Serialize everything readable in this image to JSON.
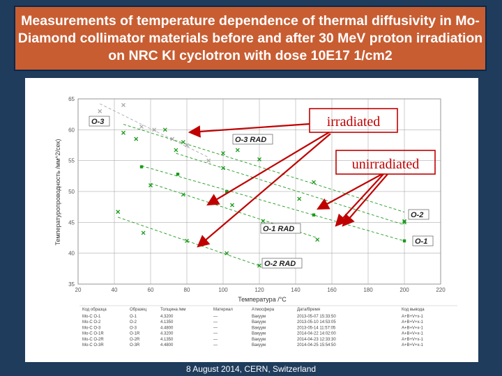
{
  "header": {
    "title": "Measurements of temperature dependence of thermal diffusivity in Mo-Diamond collimator materials before and after 30 MeV proton irradiation on NRC KI cyclotron with dose 10E17 1/cm2"
  },
  "footer": {
    "text": "8 August 2014, CERN, Switzerland"
  },
  "annotations": {
    "irradiated": "irradiated",
    "unirradiated": "unirradiated"
  },
  "colors": {
    "background": "#1f3c5c",
    "title_bg": "#c85d32",
    "annotation": "#c00000",
    "series": "#1a9a1a"
  },
  "chart_data": {
    "type": "scatter",
    "xlabel": "Температура /°C",
    "ylabel": "Температуропроводность /мм^2/сек)",
    "xlim": [
      20,
      220
    ],
    "ylim": [
      35,
      65
    ],
    "x_ticks": [
      "20",
      "40",
      "60",
      "80",
      "100",
      "120",
      "140",
      "160",
      "180",
      "200",
      "220"
    ],
    "y_ticks": [
      "35",
      "40",
      "45",
      "50",
      "55",
      "60",
      "65"
    ],
    "grid": true,
    "series": [
      {
        "name": "O-3",
        "marker": "x",
        "color": "#aaaaaa",
        "points": [
          [
            32,
            63
          ],
          [
            45,
            64
          ],
          [
            55,
            60.5
          ],
          [
            62,
            60
          ],
          [
            72,
            58.5
          ],
          [
            80,
            57.5
          ],
          [
            92,
            55
          ]
        ]
      },
      {
        "name": "O-3 RAD",
        "marker": "x",
        "color": "#1a9a1a",
        "points": [
          [
            45,
            59.5
          ],
          [
            52,
            58.5
          ],
          [
            68,
            60
          ],
          [
            78,
            58
          ],
          [
            100,
            56.2
          ],
          [
            108,
            56.7
          ],
          [
            120,
            55.2
          ],
          [
            150,
            51.5
          ],
          [
            200,
            45
          ]
        ]
      },
      {
        "name": "O-2",
        "marker": "x",
        "color": "#1a9a1a",
        "points": [
          [
            74,
            56.7
          ],
          [
            100,
            53.8
          ],
          [
            142,
            48.8
          ],
          [
            200,
            45.2
          ]
        ]
      },
      {
        "name": "O-1",
        "marker": "square",
        "color": "#1a9a1a",
        "points": [
          [
            55,
            54
          ],
          [
            75,
            52.8
          ],
          [
            102,
            50
          ],
          [
            150,
            46.2
          ],
          [
            200,
            42
          ]
        ]
      },
      {
        "name": "O-1 RAD",
        "marker": "x",
        "color": "#1a9a1a",
        "points": [
          [
            60,
            51
          ],
          [
            78,
            49.5
          ],
          [
            105,
            47.8
          ],
          [
            122,
            45.2
          ],
          [
            152,
            42.2
          ]
        ]
      },
      {
        "name": "O-2 RAD",
        "marker": "x",
        "color": "#1a9a1a",
        "points": [
          [
            42,
            46.7
          ],
          [
            56,
            43.3
          ],
          [
            80,
            42
          ],
          [
            102,
            40
          ],
          [
            120,
            38
          ]
        ]
      }
    ]
  },
  "table": {
    "headers": [
      "Код образца",
      "Образец",
      "Толщина /мм",
      "Материал",
      "Атмосфера",
      "Дата/Время",
      "Код вывода"
    ],
    "rows": [
      [
        "Mo-C O-1",
        "O-1",
        "4.3200",
        "—",
        "Вакуум",
        "2013-05-07 15:33:50",
        "A+B+V+x-1"
      ],
      [
        "Mo-C O-2",
        "O-2",
        "4.1350",
        "—",
        "Вакуум",
        "2013-05-10 14:53:05",
        "A+B+V+x-1"
      ],
      [
        "Mo-C O-3",
        "O-3",
        "4.4800",
        "—",
        "Вакуум",
        "2013-05-14 11:57:05",
        "A+B+V+x-1"
      ],
      [
        "Mo-C O-1R",
        "O-1R",
        "4.3200",
        "—",
        "Вакуум",
        "2014-04-22 14:02:00",
        "A+B+V+x-1"
      ],
      [
        "Mo-C O-2R",
        "O-2R",
        "4.1350",
        "—",
        "Вакуум",
        "2014-04-23 12:33:30",
        "A+B+V+x-1"
      ],
      [
        "Mo-C O-3R",
        "O-3R",
        "4.4800",
        "—",
        "Вакуум",
        "2014-04-25 15:54:50",
        "A+B+V+x-1"
      ]
    ]
  }
}
